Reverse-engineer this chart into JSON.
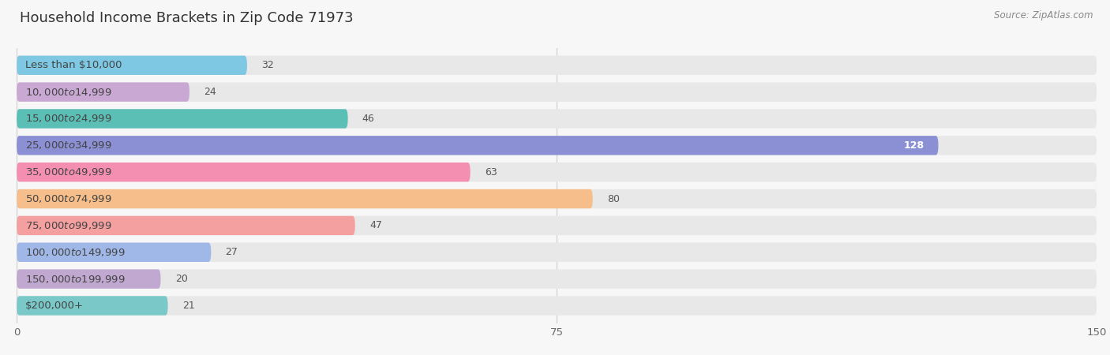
{
  "title": "Household Income Brackets in Zip Code 71973",
  "source": "Source: ZipAtlas.com",
  "categories": [
    "Less than $10,000",
    "$10,000 to $14,999",
    "$15,000 to $24,999",
    "$25,000 to $34,999",
    "$35,000 to $49,999",
    "$50,000 to $74,999",
    "$75,000 to $99,999",
    "$100,000 to $149,999",
    "$150,000 to $199,999",
    "$200,000+"
  ],
  "values": [
    32,
    24,
    46,
    128,
    63,
    80,
    47,
    27,
    20,
    21
  ],
  "bar_colors": [
    "#7EC8E3",
    "#C9A8D4",
    "#5BBFB5",
    "#8B8FD4",
    "#F48FB1",
    "#F5BE8A",
    "#F4A0A0",
    "#A0B8E8",
    "#C0A8D0",
    "#7AC8C8"
  ],
  "background_color": "#f7f7f7",
  "bar_bg_color": "#e8e8e8",
  "xlim": [
    0,
    150
  ],
  "xticks": [
    0,
    75,
    150
  ],
  "title_fontsize": 13,
  "label_fontsize": 9.5,
  "value_fontsize": 9
}
